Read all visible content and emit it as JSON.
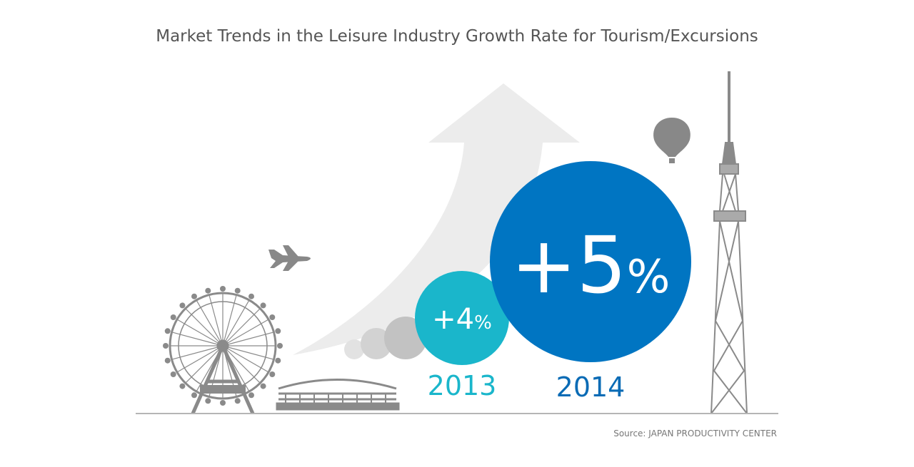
{
  "header": {
    "title": "Market Trends in the Leisure Industry Growth Rate for Tourism/Excursions"
  },
  "items": [
    {
      "year": "2013",
      "value": "+4",
      "unit": "%"
    },
    {
      "year": "2014",
      "value": "+5",
      "unit": "%"
    }
  ],
  "footer": {
    "source": "Source: JAPAN PRODUCTIVITY CENTER"
  }
}
